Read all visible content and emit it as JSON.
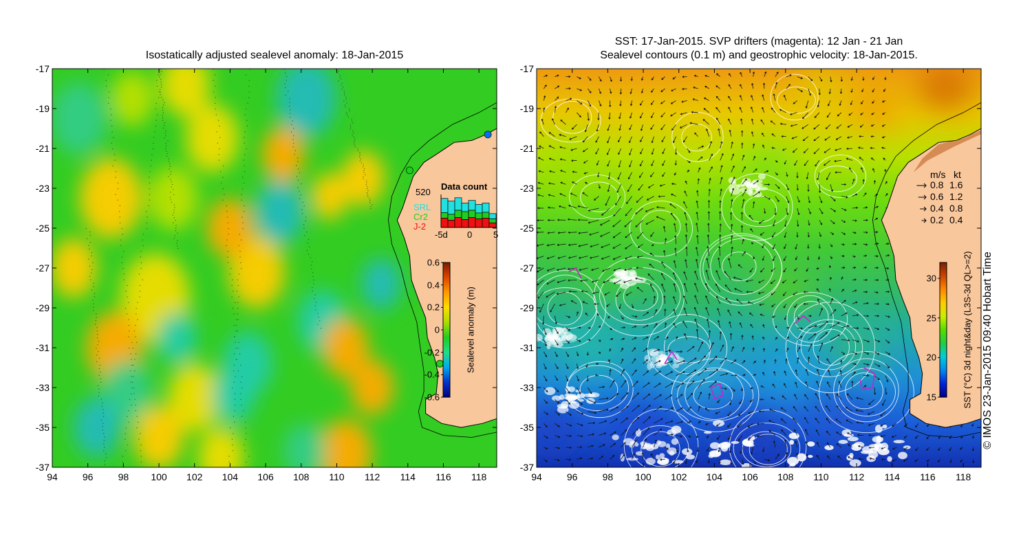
{
  "left_panel": {
    "title": "Isostatically adjusted sealevel anomaly: 18-Jan-2015",
    "colorbar": {
      "label": "Sealevel anomaly (m)",
      "ticks": [
        "0.6",
        "0.4",
        "0.2",
        "0",
        "-0.2",
        "-0.4",
        "-0.6"
      ],
      "min": -0.6,
      "max": 0.6,
      "colors": [
        "#00007a",
        "#0033cc",
        "#00aaee",
        "#22dd88",
        "#22cc22",
        "#aadd00",
        "#ffdd00",
        "#ff9900",
        "#dd4400",
        "#7a1a00"
      ]
    },
    "data_count": {
      "title": "Data count",
      "max_label": "520",
      "x_ticks": [
        "-5d",
        "0",
        "5"
      ],
      "legend": [
        {
          "name": "SRL",
          "color": "#22e0e0"
        },
        {
          "name": "Cr2",
          "color": "#22cc22"
        },
        {
          "name": "J-2",
          "color": "#ee1111"
        }
      ],
      "bars": [
        {
          "j2": 0.28,
          "cr2": 0.45,
          "srl": 0.88
        },
        {
          "j2": 0.22,
          "cr2": 0.4,
          "srl": 0.8
        },
        {
          "j2": 0.3,
          "cr2": 0.52,
          "srl": 0.9
        },
        {
          "j2": 0.24,
          "cr2": 0.48,
          "srl": 0.74
        },
        {
          "j2": 0.3,
          "cr2": 0.52,
          "srl": 0.82
        },
        {
          "j2": 0.26,
          "cr2": 0.44,
          "srl": 0.7
        },
        {
          "j2": 0.28,
          "cr2": 0.46,
          "srl": 0.74
        },
        {
          "j2": 0.14,
          "cr2": 0.26,
          "srl": 0.42
        }
      ]
    }
  },
  "right_panel": {
    "title_line1": "SST: 17-Jan-2015. SVP drifters (magenta): 12 Jan - 21 Jan",
    "title_line2": "Sealevel contours (0.1 m) and geostrophic velocity: 18-Jan-2015.",
    "colorbar": {
      "label": "SST (°C) 3d night&day (L3S-3d QL>=2)",
      "ticks": [
        "30",
        "25",
        "20",
        "15"
      ],
      "min": 15,
      "max": 32,
      "colors": [
        "#00007a",
        "#0022dd",
        "#0088ee",
        "#00ccdd",
        "#22cc44",
        "#55dd00",
        "#ccee00",
        "#ffcc00",
        "#ff8800",
        "#cc4400",
        "#7a2000"
      ]
    },
    "velocity_legend": {
      "header_ms": "m/s",
      "header_kt": "kt",
      "rows": [
        {
          "ms": "0.8",
          "kt": "1.6"
        },
        {
          "ms": "0.6",
          "kt": "1.2"
        },
        {
          "ms": "0.4",
          "kt": "0.8"
        },
        {
          "ms": "0.2",
          "kt": "0.4"
        }
      ]
    }
  },
  "axes": {
    "lon_ticks": [
      "94",
      "96",
      "98",
      "100",
      "102",
      "104",
      "106",
      "108",
      "110",
      "112",
      "114",
      "116",
      "118"
    ],
    "lat_ticks": [
      "-17",
      "-19",
      "-21",
      "-23",
      "-25",
      "-27",
      "-29",
      "-31",
      "-33",
      "-35",
      "-37"
    ],
    "lon_range": [
      94,
      119
    ],
    "lat_range": [
      -37,
      -17
    ]
  },
  "credit": "© IMOS 23-Jan-2015 09:40 Hobart Time",
  "colors": {
    "land": "#f9c79c",
    "sla_background": "#33cc22",
    "coast": "#000000",
    "contours": "#ffffff",
    "drifters": "#cc22cc"
  }
}
